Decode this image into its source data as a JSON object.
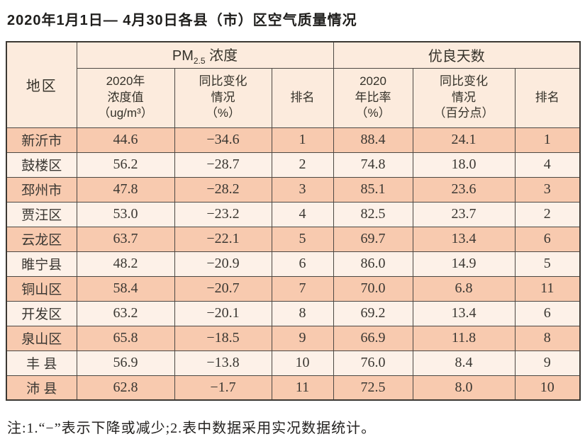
{
  "page": {
    "title": "2020年1月1日— 4月30日各县（市）区空气质量情况",
    "note": "注:1.“−”表示下降或减少;2.表中数据采用实况数据统计。"
  },
  "table": {
    "header": {
      "region": "地区",
      "pm_group": {
        "main": "PM",
        "sub": "2.5",
        "suffix": " 浓度"
      },
      "good_days_group": "优良天数",
      "sub_cols": [
        {
          "label": "2020年\n浓度值\n（ug/m³）"
        },
        {
          "label": "同比变化\n情况\n（%）"
        },
        {
          "label": "排名"
        },
        {
          "label": "2020\n年比率\n（%）"
        },
        {
          "label": "同比变化\n情况\n（百分点）"
        },
        {
          "label": "排名"
        }
      ]
    },
    "rows": [
      {
        "region": "新沂市",
        "values": [
          "44.6",
          "−34.6",
          "1",
          "88.4",
          "24.1",
          "1"
        ]
      },
      {
        "region": "鼓楼区",
        "values": [
          "56.2",
          "−28.7",
          "2",
          "74.8",
          "18.0",
          "4"
        ]
      },
      {
        "region": "邳州市",
        "values": [
          "47.8",
          "−28.2",
          "3",
          "85.1",
          "23.6",
          "3"
        ]
      },
      {
        "region": "贾汪区",
        "values": [
          "53.0",
          "−23.2",
          "4",
          "82.5",
          "23.7",
          "2"
        ]
      },
      {
        "region": "云龙区",
        "values": [
          "63.7",
          "−22.1",
          "5",
          "69.7",
          "13.4",
          "6"
        ]
      },
      {
        "region": "睢宁县",
        "values": [
          "48.2",
          "−20.9",
          "6",
          "86.0",
          "14.9",
          "5"
        ]
      },
      {
        "region": "铜山区",
        "values": [
          "58.4",
          "−20.7",
          "7",
          "70.0",
          "6.8",
          "11"
        ]
      },
      {
        "region": "开发区",
        "values": [
          "63.2",
          "−20.1",
          "8",
          "69.2",
          "13.4",
          "6"
        ]
      },
      {
        "region": "泉山区",
        "values": [
          "65.8",
          "−18.5",
          "9",
          "66.9",
          "11.8",
          "8"
        ]
      },
      {
        "region": "丰 县",
        "values": [
          "56.9",
          "−13.8",
          "10",
          "76.0",
          "8.4",
          "9"
        ]
      },
      {
        "region": "沛 县",
        "values": [
          "62.8",
          "−1.7",
          "11",
          "72.5",
          "8.0",
          "10"
        ]
      }
    ]
  },
  "colors": {
    "row_salmon": "#f8caaf",
    "row_light": "#fdf1e8",
    "header_bg": "#fcebdd",
    "grid_border": "#4c4843",
    "outer_border": "#3b3833",
    "text": "#2e2c29"
  }
}
